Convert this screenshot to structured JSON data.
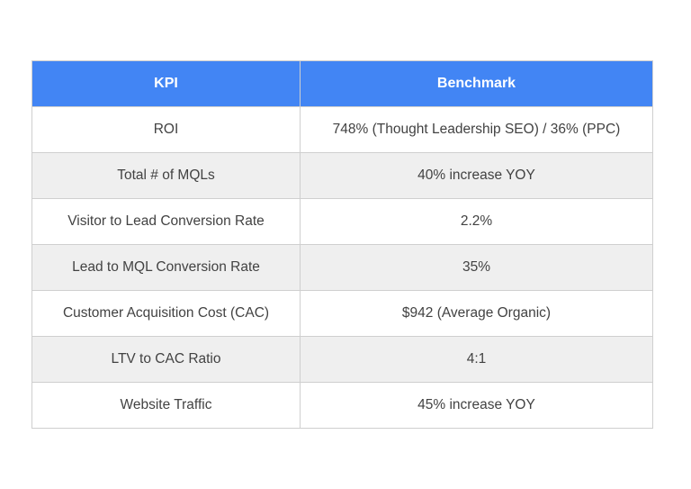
{
  "table": {
    "headers": {
      "kpi": "KPI",
      "benchmark": "Benchmark"
    },
    "rows": [
      {
        "kpi": "ROI",
        "benchmark": "748% (Thought Leadership SEO) / 36% (PPC)"
      },
      {
        "kpi": "Total # of MQLs",
        "benchmark": "40% increase YOY"
      },
      {
        "kpi": "Visitor to Lead Conversion Rate",
        "benchmark": "2.2%"
      },
      {
        "kpi": "Lead to MQL Conversion Rate",
        "benchmark": "35%"
      },
      {
        "kpi": "Customer Acquisition Cost (CAC)",
        "benchmark": "$942 (Average Organic)"
      },
      {
        "kpi": "LTV to CAC Ratio",
        "benchmark": "4:1"
      },
      {
        "kpi": "Website Traffic",
        "benchmark": "45% increase YOY"
      }
    ]
  },
  "colors": {
    "header_bg": "#4285f4",
    "header_text": "#ffffff",
    "row_alt_bg": "#efefef",
    "border": "#cfcfcf",
    "body_text": "#424242"
  }
}
